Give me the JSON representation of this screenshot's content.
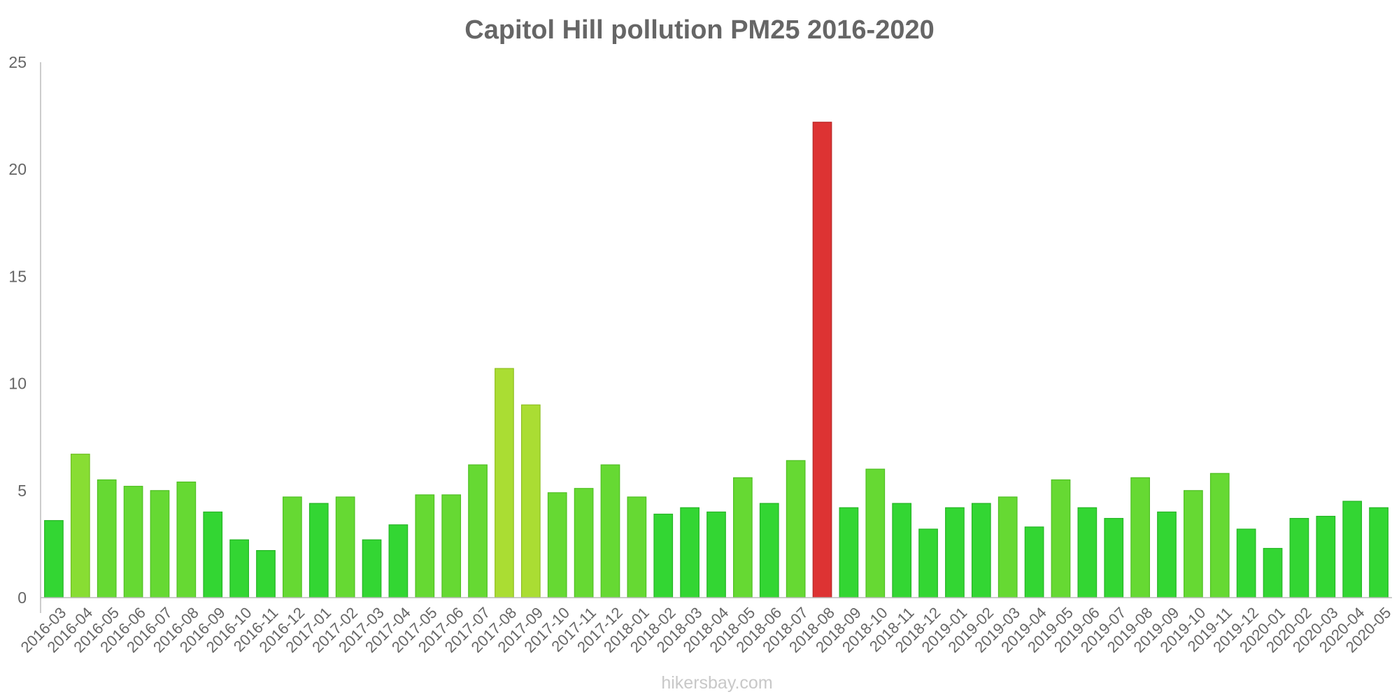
{
  "chart_data": {
    "type": "bar",
    "title": "Capitol Hill pollution PM25 2016-2020",
    "xlabel": "",
    "ylabel": "",
    "ylim": [
      0,
      25
    ],
    "y_ticks": [
      "0",
      "5",
      "10",
      "15",
      "20",
      "25"
    ],
    "grid": false,
    "legend": "none",
    "categories": [
      "2016-03",
      "2016-04",
      "2016-05",
      "2016-06",
      "2016-07",
      "2016-08",
      "2016-09",
      "2016-10",
      "2016-11",
      "2016-12",
      "2017-01",
      "2017-02",
      "2017-03",
      "2017-04",
      "2017-05",
      "2017-06",
      "2017-07",
      "2017-08",
      "2017-09",
      "2017-10",
      "2017-11",
      "2017-12",
      "2018-01",
      "2018-02",
      "2018-03",
      "2018-04",
      "2018-05",
      "2018-06",
      "2018-07",
      "2018-08",
      "2018-09",
      "2018-10",
      "2018-11",
      "2018-12",
      "2019-01",
      "2019-02",
      "2019-03",
      "2019-04",
      "2019-05",
      "2019-06",
      "2019-07",
      "2019-08",
      "2019-09",
      "2019-10",
      "2019-11",
      "2019-12",
      "2020-01",
      "2020-02",
      "2020-03",
      "2020-04",
      "2020-05"
    ],
    "values": [
      3.6,
      6.7,
      5.5,
      5.2,
      5.0,
      5.4,
      4.0,
      2.7,
      2.2,
      4.7,
      4.4,
      4.7,
      2.7,
      3.4,
      4.8,
      4.8,
      6.2,
      10.7,
      9.0,
      4.9,
      5.1,
      6.2,
      4.7,
      3.9,
      4.2,
      4.0,
      5.6,
      4.4,
      6.4,
      22.2,
      4.2,
      6.0,
      4.4,
      3.2,
      4.2,
      4.4,
      4.7,
      3.3,
      5.5,
      4.2,
      3.7,
      5.6,
      4.0,
      5.0,
      5.8,
      3.2,
      2.3,
      3.7,
      3.8,
      4.5,
      4.2
    ],
    "colors": {
      "low": "#33d633",
      "moderate": "#66d933",
      "elevated": "#88dd33",
      "high": "#aadd33",
      "very_high": "#dd3333",
      "axis": "#bbbbbb",
      "text": "#666666"
    }
  },
  "watermark": "hikersbay.com"
}
